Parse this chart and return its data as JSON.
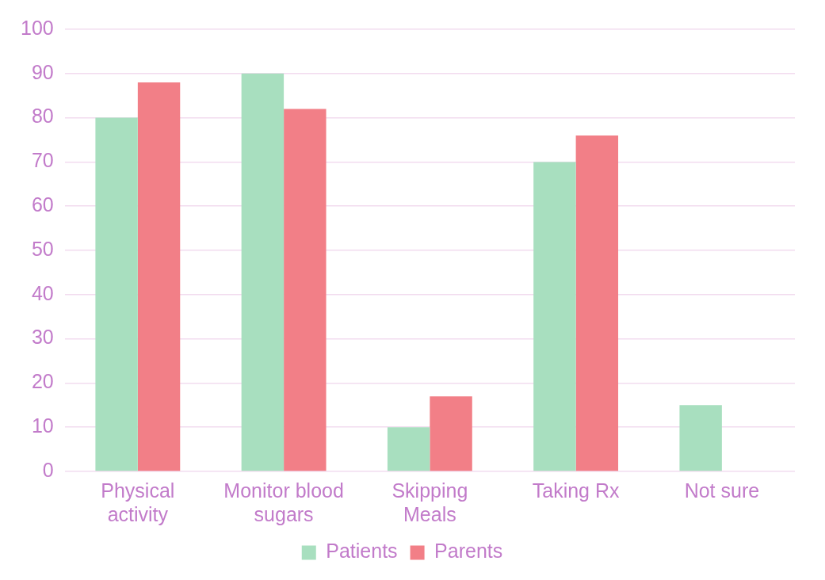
{
  "chart_data": {
    "type": "bar",
    "categories": [
      "Physical activity",
      "Monitor blood sugars",
      "Skipping Meals",
      "Taking Rx",
      "Not sure"
    ],
    "series": [
      {
        "name": "Patients",
        "color": "#a8dfbf",
        "values": [
          80,
          90,
          10,
          70,
          15
        ]
      },
      {
        "name": "Parents",
        "color": "#f27f87",
        "values": [
          88,
          82,
          17,
          76,
          0
        ]
      }
    ],
    "ylim": [
      0,
      100
    ],
    "yticks": [
      0,
      10,
      20,
      30,
      40,
      50,
      60,
      70,
      80,
      90,
      100
    ],
    "grid": "y",
    "legend": "bottom"
  }
}
